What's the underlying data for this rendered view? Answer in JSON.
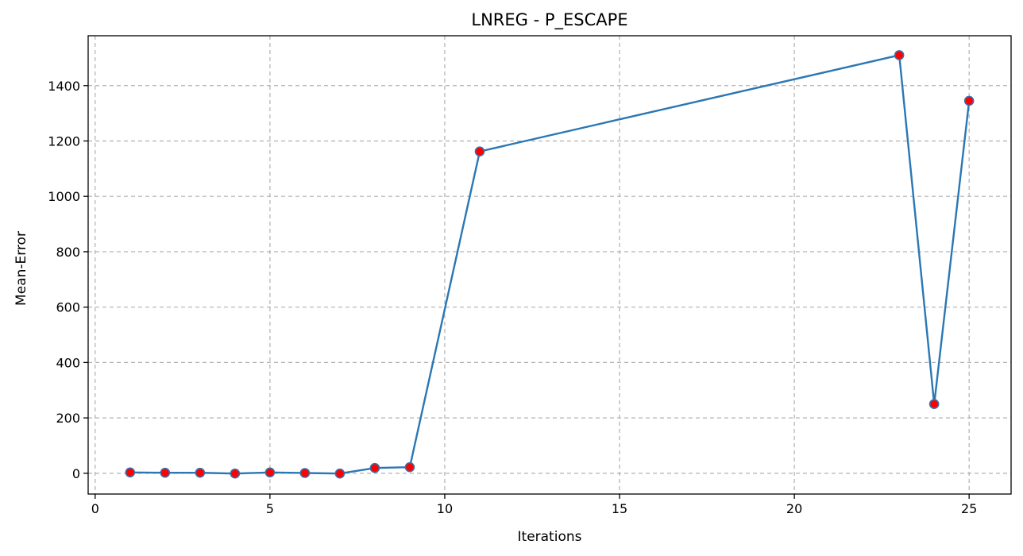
{
  "chart_data": {
    "type": "line",
    "title": "LNREG - P_ESCAPE",
    "xlabel": "Iterations",
    "ylabel": "Mean-Error",
    "xlim": [
      -0.2,
      26.2
    ],
    "ylim": [
      -75,
      1580
    ],
    "xticks": [
      0,
      5,
      10,
      15,
      20,
      25
    ],
    "yticks": [
      0,
      200,
      400,
      600,
      800,
      1000,
      1200,
      1400
    ],
    "grid": true,
    "line_color": "#2a77b4",
    "marker_face_color": "#ff0000",
    "marker_edge_color": "#3a6fa8",
    "series": [
      {
        "x": [
          1,
          2,
          3,
          4,
          5,
          6,
          7,
          8,
          9,
          11,
          23,
          24,
          25
        ],
        "y": [
          3,
          2,
          2,
          -1,
          3,
          1,
          -1,
          19,
          22,
          1162,
          1510,
          250,
          1345
        ]
      }
    ]
  }
}
